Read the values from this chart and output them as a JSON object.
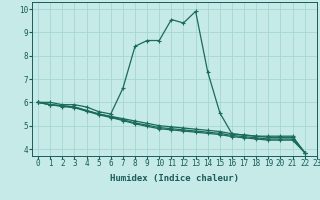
{
  "xlabel": "Humidex (Indice chaleur)",
  "xlim": [
    -0.5,
    23
  ],
  "ylim": [
    3.7,
    10.3
  ],
  "xticks": [
    0,
    1,
    2,
    3,
    4,
    5,
    6,
    7,
    8,
    9,
    10,
    11,
    12,
    13,
    14,
    15,
    16,
    17,
    18,
    19,
    20,
    21,
    22,
    23
  ],
  "yticks": [
    4,
    5,
    6,
    7,
    8,
    9,
    10
  ],
  "background_color": "#c5eae7",
  "grid_color": "#a0d4d0",
  "line_color": "#1a6b5a",
  "lines": [
    [
      6.0,
      6.0,
      5.9,
      5.9,
      5.8,
      5.6,
      5.5,
      6.6,
      8.4,
      8.65,
      8.65,
      9.55,
      9.4,
      9.9,
      7.3,
      5.55,
      4.65,
      4.6,
      4.55,
      4.55,
      4.55,
      4.55,
      3.85
    ],
    [
      6.0,
      5.9,
      5.85,
      5.8,
      5.65,
      5.5,
      5.4,
      5.3,
      5.2,
      5.1,
      5.0,
      4.95,
      4.9,
      4.85,
      4.8,
      4.75,
      4.65,
      4.6,
      4.55,
      4.5,
      4.5,
      4.5,
      3.85
    ],
    [
      6.0,
      5.9,
      5.85,
      5.8,
      5.65,
      5.5,
      5.38,
      5.25,
      5.12,
      5.02,
      4.92,
      4.87,
      4.82,
      4.77,
      4.72,
      4.67,
      4.58,
      4.53,
      4.48,
      4.43,
      4.43,
      4.43,
      3.85
    ],
    [
      6.0,
      5.9,
      5.82,
      5.77,
      5.62,
      5.47,
      5.35,
      5.22,
      5.08,
      4.97,
      4.87,
      4.82,
      4.77,
      4.72,
      4.67,
      4.62,
      4.53,
      4.48,
      4.43,
      4.38,
      4.38,
      4.38,
      3.85
    ]
  ],
  "marker": "+",
  "markersize": 3.5,
  "linewidth": 0.9,
  "font_color": "#1a5c5a",
  "tick_fontsize": 5.5,
  "xlabel_fontsize": 6.5
}
